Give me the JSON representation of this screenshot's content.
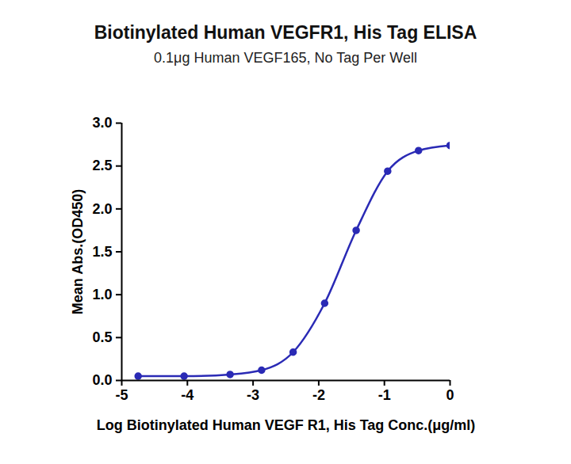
{
  "chart_data": {
    "type": "line",
    "title": "Biotinylated Human VEGFR1, His Tag ELISA",
    "subtitle": "0.1μg Human VEGF165, No Tag Per Well",
    "x_label": "Log Biotinylated Human VEGF R1, His Tag Conc.(μg/ml)",
    "y_label": "Mean Abs.(OD450)",
    "x": [
      -4.75,
      -4.05,
      -3.35,
      -2.87,
      -2.39,
      -1.91,
      -1.43,
      -0.95,
      -0.48,
      0.0
    ],
    "series": [
      {
        "name": "Biotinylated Human VEGFR1, His Tag",
        "color": "#2a2ab5",
        "marker": "circle",
        "values": [
          0.05,
          0.05,
          0.07,
          0.12,
          0.33,
          0.9,
          1.75,
          2.44,
          2.68,
          2.74
        ]
      }
    ],
    "xlim": [
      -5,
      0
    ],
    "xticks": [
      -5,
      -4,
      -3,
      -2,
      -1,
      0
    ],
    "ylim": [
      0,
      3
    ],
    "yticks": [
      {
        "value": 0,
        "label": "0.0"
      },
      {
        "value": 0.5,
        "label": "0.5"
      },
      {
        "value": 1,
        "label": "1.0"
      },
      {
        "value": 1.5,
        "label": "1.5"
      },
      {
        "value": 2,
        "label": "2.0"
      },
      {
        "value": 2.5,
        "label": "2.5"
      },
      {
        "value": 3,
        "label": "3.0"
      }
    ],
    "grid": false
  }
}
